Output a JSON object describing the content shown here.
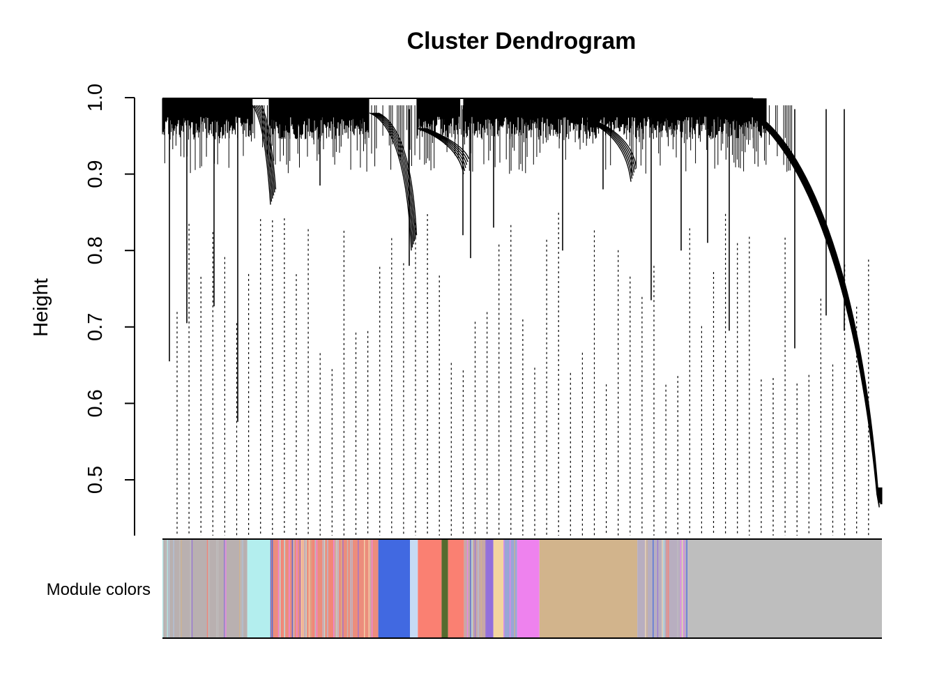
{
  "chart_data": {
    "type": "dendrogram",
    "title": "Cluster Dendrogram",
    "ylabel": "Height",
    "xlabel": "",
    "ylim": [
      0.44,
      1.0
    ],
    "y_ticks": [
      0.5,
      0.6,
      0.7,
      0.8,
      0.9,
      1.0
    ],
    "y_tick_labels": [
      "0.5",
      "0.6",
      "0.7",
      "0.8",
      "0.9",
      "1.0"
    ],
    "grid": false,
    "legend": "none",
    "color_bar_label": "Module colors",
    "merge_height_top": 1.0,
    "leaf_count": 1000,
    "module_colors": [
      {
        "name": "grey-mix",
        "color": "#b9b0b0",
        "start": 0.0,
        "end": 0.118
      },
      {
        "name": "paleturquoise",
        "color": "#b3eeee",
        "start": 0.118,
        "end": 0.15
      },
      {
        "name": "salmon-mix",
        "color": "#ec8d7c",
        "start": 0.15,
        "end": 0.3
      },
      {
        "name": "royalblue",
        "color": "#4169e1",
        "start": 0.3,
        "end": 0.344
      },
      {
        "name": "lightsteelblue",
        "color": "#c6dbf4",
        "start": 0.344,
        "end": 0.355
      },
      {
        "name": "salmon",
        "color": "#fa8072",
        "start": 0.355,
        "end": 0.388
      },
      {
        "name": "darkolivegreen",
        "color": "#556b2f",
        "start": 0.388,
        "end": 0.397
      },
      {
        "name": "salmon",
        "color": "#fa8072",
        "start": 0.397,
        "end": 0.419
      },
      {
        "name": "mixed",
        "color": "#c7a7a7",
        "start": 0.419,
        "end": 0.45
      },
      {
        "name": "mediumpurple",
        "color": "#9370db",
        "start": 0.45,
        "end": 0.46
      },
      {
        "name": "wheat",
        "color": "#f3d59f",
        "start": 0.46,
        "end": 0.474
      },
      {
        "name": "mixed-blue",
        "color": "#9aa6d6",
        "start": 0.474,
        "end": 0.493
      },
      {
        "name": "violet",
        "color": "#ee82ee",
        "start": 0.493,
        "end": 0.524
      },
      {
        "name": "tan",
        "color": "#d2b48c",
        "start": 0.524,
        "end": 0.66
      },
      {
        "name": "tan-blue-mix",
        "color": "#b8aec0",
        "start": 0.66,
        "end": 0.73
      },
      {
        "name": "grey",
        "color": "#bebebe",
        "start": 0.73,
        "end": 1.0
      }
    ]
  }
}
